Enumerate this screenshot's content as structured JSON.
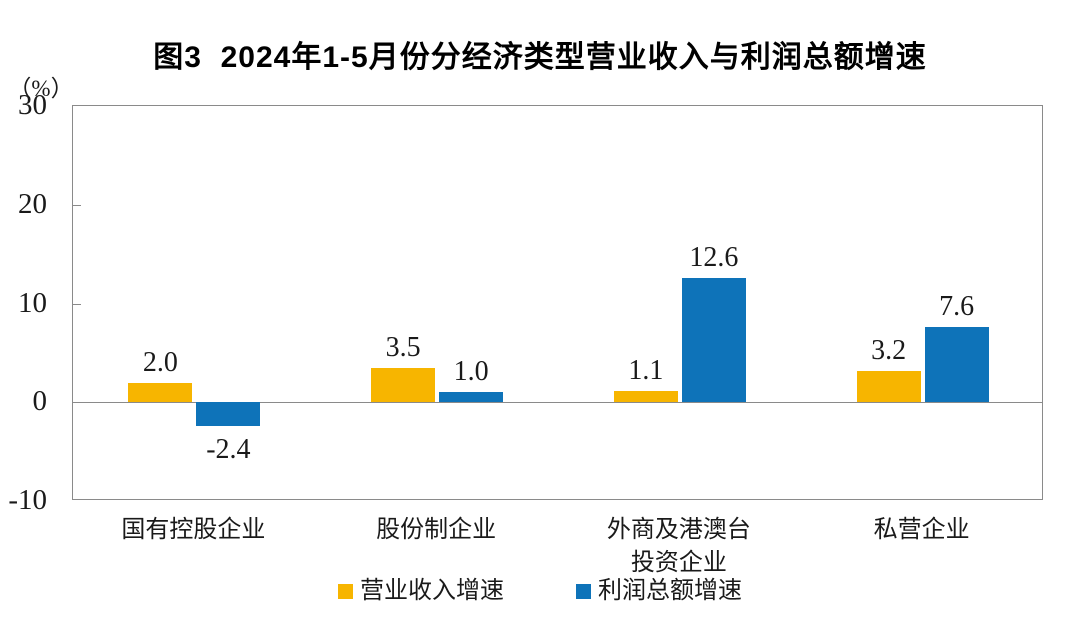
{
  "title": "图3  2024年1-5月份分经济类型营业收入与利润总额增速",
  "unit_label": "（%）",
  "colors": {
    "series": [
      "#F7B500",
      "#0E73B9"
    ],
    "axis": "#8A8A8A",
    "text": "#1A1A1A"
  },
  "legend": {
    "items": [
      {
        "label": "营业收入增速"
      },
      {
        "label": "利润总额增速"
      }
    ]
  },
  "chart_data": {
    "type": "bar",
    "categories": [
      "国有控股企业",
      "股份制企业",
      "外商及港澳台\n投资企业",
      "私营企业"
    ],
    "series": [
      {
        "name": "营业收入增速",
        "values": [
          2.0,
          3.5,
          1.1,
          3.2
        ]
      },
      {
        "name": "利润总额增速",
        "values": [
          -2.4,
          1.0,
          12.6,
          7.6
        ]
      }
    ],
    "title": "图3  2024年1-5月份分经济类型营业收入与利润总额增速",
    "xlabel": "",
    "ylabel": "（%）",
    "ylim": [
      -10,
      30
    ],
    "yticks": [
      30,
      20,
      10,
      0,
      -10
    ],
    "grid": false,
    "legend_position": "bottom",
    "data_label_decimals": 1
  }
}
